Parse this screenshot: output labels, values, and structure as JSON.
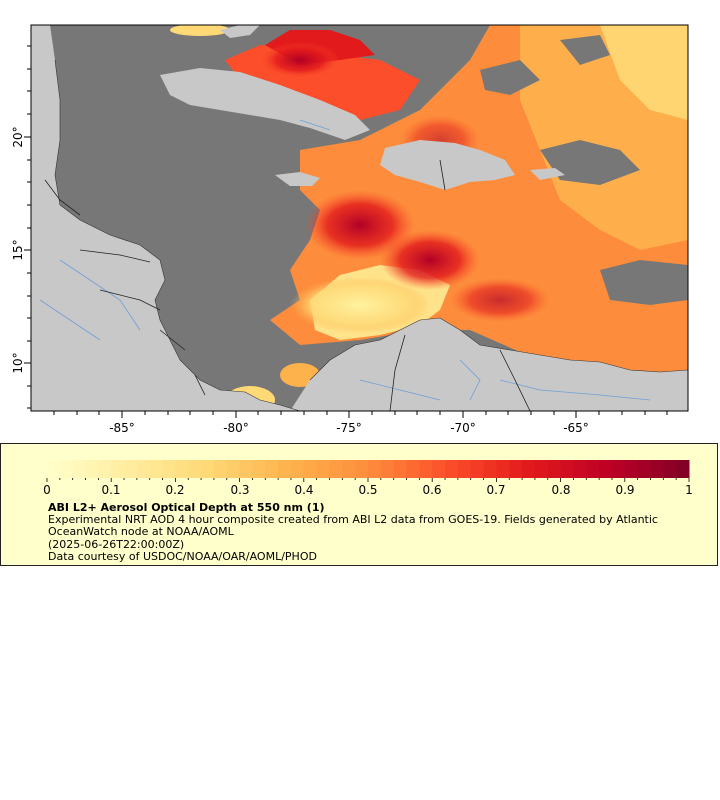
{
  "map": {
    "lat_ticks": [
      "20°",
      "15°",
      "10°"
    ],
    "lon_ticks": [
      "-85°",
      "-80°",
      "-75°",
      "-70°",
      "-65°"
    ],
    "colors": {
      "ocean": "#777777",
      "land": "#c8c8c8",
      "border": "#222222",
      "river": "#6f9fd8",
      "aod_low": "#ffffcc",
      "aod_mid": "#fd8d3c",
      "aod_high": "#800026"
    }
  },
  "legend": {
    "tick_labels": [
      "0",
      "0.1",
      "0.2",
      "0.3",
      "0.4",
      "0.5",
      "0.6",
      "0.7",
      "0.8",
      "0.9",
      "1"
    ],
    "title": "ABI L2+ Aerosol Optical Depth at 550 nm (1)",
    "description": "Experimental NRT AOD 4 hour composite created from ABI L2 data from GOES-19. Fields generated by Atlantic OceanWatch node at NOAA/AOML",
    "date": "(2025-06-26T22:00:00Z)",
    "credit": "Data courtesy of USDOC/NOAA/OAR/AOML/PHOD"
  }
}
